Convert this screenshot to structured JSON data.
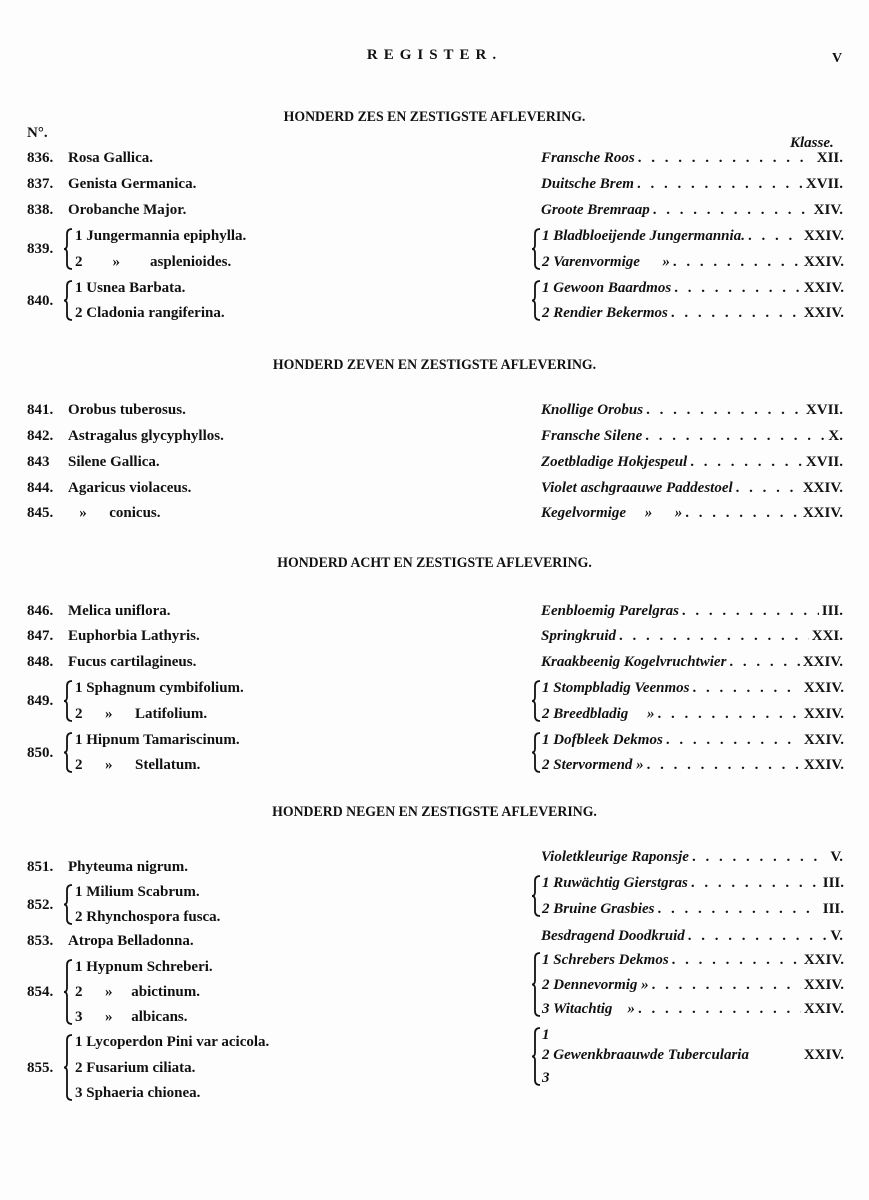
{
  "title": "REGISTER.",
  "page_number": "V",
  "column_headers": {
    "number": "N°.",
    "klasse": "Klasse."
  },
  "sections": [
    {
      "heading": "HONDERD ZES EN ZESTIGSTE AFLEVERING.",
      "entries": [
        {
          "no": "836.",
          "latin": [
            "Rosa Gallica."
          ],
          "dutch": [
            "Fransche Roos"
          ],
          "klasse": [
            "XII."
          ]
        },
        {
          "no": "837.",
          "latin": [
            "Genista Germanica."
          ],
          "dutch": [
            "Duitsche Brem"
          ],
          "klasse": [
            "XVII."
          ]
        },
        {
          "no": "838.",
          "latin": [
            "Orobanche Major."
          ],
          "dutch": [
            "Groote Bremraap"
          ],
          "klasse": [
            "XIV."
          ]
        },
        {
          "no": "839.",
          "latin": [
            "1 Jungermannia epiphylla.",
            "2        »        asplenioides."
          ],
          "dutch": [
            "1 Bladbloeijende Jungermannia.",
            "2 Varenvormige      »"
          ],
          "klasse": [
            "XXIV.",
            "XXIV."
          ]
        },
        {
          "no": "840.",
          "latin": [
            "1 Usnea Barbata.",
            "2 Cladonia rangiferina."
          ],
          "dutch": [
            "1 Gewoon Baardmos",
            "2 Rendier Bekermos"
          ],
          "klasse": [
            "XXIV.",
            "XXIV."
          ]
        }
      ]
    },
    {
      "heading": "HONDERD ZEVEN EN ZESTIGSTE AFLEVERING.",
      "entries": [
        {
          "no": "841.",
          "latin": [
            "Orobus tuberosus."
          ],
          "dutch": [
            "Knollige Orobus"
          ],
          "klasse": [
            "XVII."
          ]
        },
        {
          "no": "842.",
          "latin": [
            "Astragalus glycyphyllos."
          ],
          "dutch": [
            "Fransche Silene"
          ],
          "klasse": [
            "X."
          ]
        },
        {
          "no": "843",
          "latin": [
            "Silene Gallica."
          ],
          "dutch": [
            "Zoetbladige Hokjespeul"
          ],
          "klasse": [
            "XVII."
          ]
        },
        {
          "no": "844.",
          "latin": [
            "Agaricus violaceus."
          ],
          "dutch": [
            "Violet aschgraauwe Paddestoel"
          ],
          "klasse": [
            "XXIV."
          ]
        },
        {
          "no": "845.",
          "latin": [
            "   »      conicus."
          ],
          "dutch": [
            "Kegelvormige     »      »"
          ],
          "klasse": [
            "XXIV."
          ]
        }
      ]
    },
    {
      "heading": "HONDERD ACHT EN ZESTIGSTE AFLEVERING.",
      "entries": [
        {
          "no": "846.",
          "latin": [
            "Melica uniflora."
          ],
          "dutch": [
            "Eenbloemig Parelgras"
          ],
          "klasse": [
            "III."
          ]
        },
        {
          "no": "847.",
          "latin": [
            "Euphorbia Lathyris."
          ],
          "dutch": [
            "Springkruid"
          ],
          "klasse": [
            "XXI."
          ]
        },
        {
          "no": "848.",
          "latin": [
            "Fucus cartilagineus."
          ],
          "dutch": [
            "Kraakbeenig Kogelvruchtwier"
          ],
          "klasse": [
            "XXIV."
          ]
        },
        {
          "no": "849.",
          "latin": [
            "1 Sphagnum cymbifolium.",
            "2      »      Latifolium."
          ],
          "dutch": [
            "1 Stompbladig Veenmos",
            "2 Breedbladig     »"
          ],
          "klasse": [
            "XXIV.",
            "XXIV."
          ]
        },
        {
          "no": "850.",
          "latin": [
            "1 Hipnum Tamariscinum.",
            "2      »      Stellatum."
          ],
          "dutch": [
            "1 Dofbleek Dekmos",
            "2 Stervormend »"
          ],
          "klasse": [
            "XXIV.",
            "XXIV."
          ]
        }
      ]
    },
    {
      "heading": "HONDERD NEGEN EN ZESTIGSTE AFLEVERING.",
      "entries": [
        {
          "no": "851.",
          "latin": [
            "Phyteuma nigrum."
          ],
          "dutch": [
            "Violetkleurige Raponsje"
          ],
          "klasse": [
            "V."
          ]
        },
        {
          "no": "852.",
          "latin": [
            "1 Milium Scabrum.",
            "2 Rhynchospora fusca."
          ],
          "dutch": [
            "1 Ruwächtig Gierstgras",
            "2 Bruine Grasbies"
          ],
          "klasse": [
            "III.",
            "III."
          ]
        },
        {
          "no": "853.",
          "latin": [
            "Atropa Belladonna."
          ],
          "dutch": [
            "Besdragend Doodkruid"
          ],
          "klasse": [
            "V."
          ]
        },
        {
          "no": "854.",
          "latin": [
            "1 Hypnum Schreberi.",
            "2      »     abictinum.",
            "3      »     albicans."
          ],
          "dutch": [
            "1 Schrebers Dekmos",
            "2 Dennevormig »",
            "3 Witachtig    »"
          ],
          "klasse": [
            "XXIV.",
            "XXIV.",
            "XXIV."
          ]
        },
        {
          "no": "855.",
          "latin": [
            "1 Lycoperdon Pini var acicola.",
            "2 Fusarium ciliata.",
            "3 Sphaeria chionea."
          ],
          "dutch": [
            "1",
            "2 Gewenkbraauwde Tubercularia",
            "3"
          ],
          "klasse": [
            "",
            "XXIV.",
            ""
          ]
        }
      ]
    }
  ]
}
